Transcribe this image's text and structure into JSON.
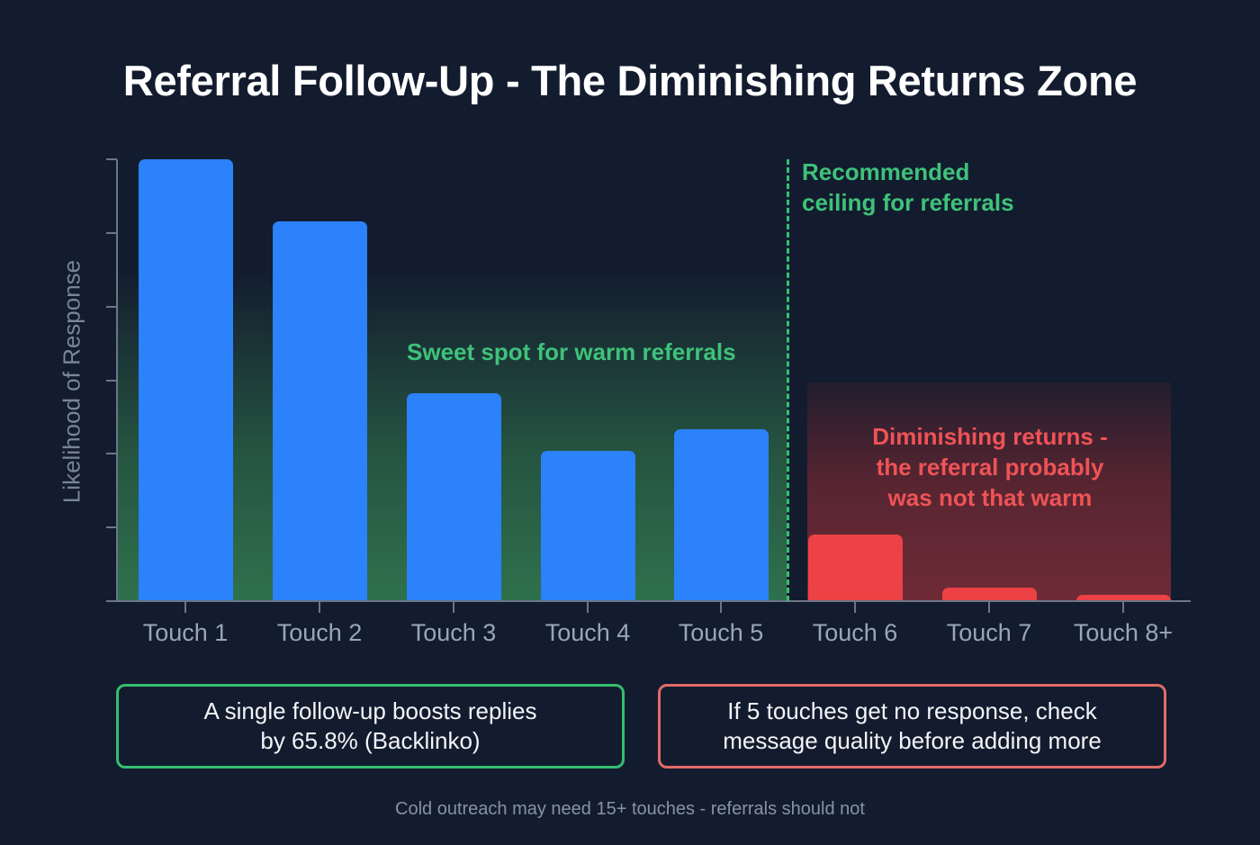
{
  "title": "Referral Follow-Up - The Diminishing Returns Zone",
  "colors": {
    "background": "#131c2e",
    "bar_primary": "#2b82fb",
    "bar_diminishing": "#ec4246",
    "accent_green": "#3ec27a",
    "accent_red": "#ef5356",
    "axis": "#6b7687"
  },
  "chart_data": {
    "type": "bar",
    "title": "Referral Follow-Up - The Diminishing Returns Zone",
    "xlabel": "",
    "ylabel": "Likelihood of Response",
    "categories": [
      "Touch 1",
      "Touch 2",
      "Touch 3",
      "Touch 4",
      "Touch 5",
      "Touch 6",
      "Touch 7",
      "Touch 8+"
    ],
    "values": [
      100,
      86,
      47,
      34,
      39,
      15,
      3,
      1.5
    ],
    "bar_colors": [
      "#2b82fb",
      "#2b82fb",
      "#2b82fb",
      "#2b82fb",
      "#2b82fb",
      "#ec4246",
      "#ec4246",
      "#ec4246"
    ],
    "ylim": [
      0,
      100
    ],
    "y_ticks_labeled": false,
    "y_tick_count": 7,
    "grid": false,
    "legend": null,
    "annotations": [
      {
        "text": "Recommended ceiling for referrals",
        "type": "vertical-dashed-line",
        "position": "between Touch 5 and Touch 6",
        "color": "#3ec27a"
      },
      {
        "text": "Sweet spot for warm referrals",
        "type": "shaded-region",
        "span": [
          "Touch 1",
          "Touch 5"
        ],
        "color": "#3ec27a"
      },
      {
        "text": "Diminishing returns - the referral probably was not that warm",
        "type": "shaded-region",
        "span": [
          "Touch 6",
          "Touch 8+"
        ],
        "color": "#ef5356"
      }
    ]
  },
  "axis": {
    "ylabel": "Likelihood of Response",
    "x_labels": [
      "Touch 1",
      "Touch 2",
      "Touch 3",
      "Touch 4",
      "Touch 5",
      "Touch 6",
      "Touch 7",
      "Touch 8+"
    ]
  },
  "annotations": {
    "ceiling_line1": "Recommended",
    "ceiling_line2": "ceiling for referrals",
    "sweet_spot": "Sweet spot for warm referrals",
    "diminishing_line1": "Diminishing returns -",
    "diminishing_line2": "the referral probably",
    "diminishing_line3": "was not that warm"
  },
  "callouts": {
    "green_line1": "A single follow-up boosts replies",
    "green_line2": "by 65.8% (Backlinko)",
    "red_line1": "If 5 touches get no response, check",
    "red_line2": "message quality before adding more"
  },
  "footnote": "Cold outreach may need 15+ touches - referrals should not"
}
